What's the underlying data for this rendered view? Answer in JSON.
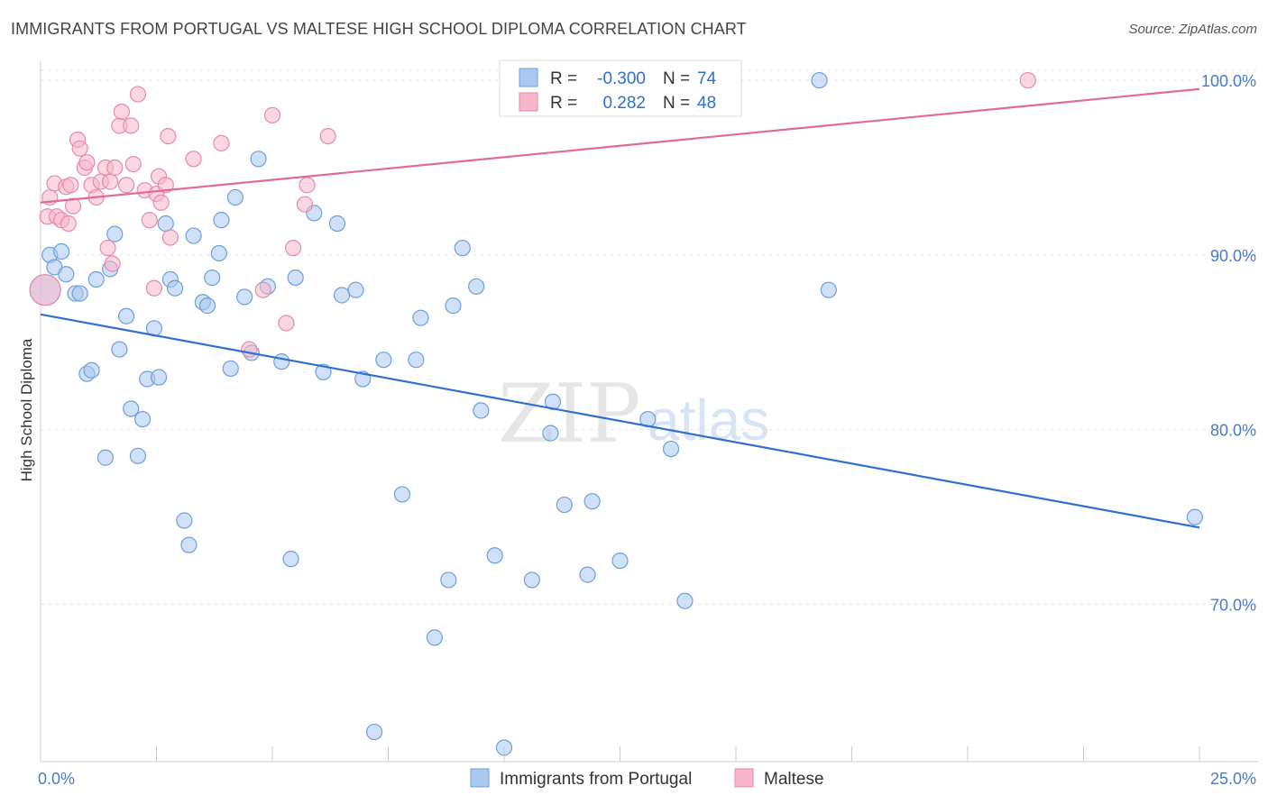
{
  "header": {
    "title": "IMMIGRANTS FROM PORTUGAL VS MALTESE HIGH SCHOOL DIPLOMA CORRELATION CHART",
    "source": "Source: ZipAtlas.com"
  },
  "watermark": {
    "zip": "ZIP",
    "atlas": "atlas"
  },
  "legend": {
    "rows": [
      {
        "r_label": "R =",
        "r_value": "-0.300",
        "n_label": "N =",
        "n_value": "74",
        "color": "#a9c8f0"
      },
      {
        "r_label": "R =",
        "r_value": "0.282",
        "n_label": "N =",
        "n_value": "48",
        "color": "#f7b6c9"
      }
    ]
  },
  "chart_data": {
    "type": "scatter",
    "title": "IMMIGRANTS FROM PORTUGAL VS MALTESE HIGH SCHOOL DIPLOMA CORRELATION CHART",
    "xlabel": "",
    "ylabel": "High School Diploma",
    "xlim": [
      0,
      25
    ],
    "ylim": [
      61,
      101.5
    ],
    "x_tick_labels": [
      "0.0%",
      "25.0%"
    ],
    "y_ticks": [
      70,
      80,
      90,
      100
    ],
    "y_tick_labels": [
      "70.0%",
      "80.0%",
      "90.0%",
      "100.0%"
    ],
    "grid": true,
    "legend_position": "top-center",
    "series": [
      {
        "name": "Immigrants from Portugal",
        "color": "#a9c8f0",
        "stroke": "#6e9fdc",
        "trend_color": "#2f6fcf",
        "trend": {
          "x": [
            0,
            25
          ],
          "y": [
            86.6,
            74.4
          ]
        },
        "points": [
          [
            0.1,
            88.0
          ],
          [
            0.2,
            90.0
          ],
          [
            0.3,
            89.3
          ],
          [
            0.45,
            90.2
          ],
          [
            0.55,
            88.9
          ],
          [
            0.75,
            87.8
          ],
          [
            0.85,
            87.8
          ],
          [
            1.0,
            83.2
          ],
          [
            1.1,
            83.4
          ],
          [
            1.2,
            88.6
          ],
          [
            1.4,
            78.4
          ],
          [
            1.5,
            89.2
          ],
          [
            1.6,
            91.2
          ],
          [
            1.7,
            84.6
          ],
          [
            1.85,
            86.5
          ],
          [
            1.95,
            81.2
          ],
          [
            2.1,
            78.5
          ],
          [
            2.2,
            80.6
          ],
          [
            2.3,
            82.9
          ],
          [
            2.45,
            85.8
          ],
          [
            2.55,
            83.0
          ],
          [
            2.7,
            91.8
          ],
          [
            2.8,
            88.6
          ],
          [
            2.9,
            88.1
          ],
          [
            3.1,
            74.8
          ],
          [
            3.2,
            73.4
          ],
          [
            3.3,
            91.1
          ],
          [
            3.5,
            87.3
          ],
          [
            3.6,
            87.1
          ],
          [
            3.7,
            88.7
          ],
          [
            3.85,
            90.1
          ],
          [
            3.9,
            92.0
          ],
          [
            4.1,
            83.5
          ],
          [
            4.2,
            93.3
          ],
          [
            4.4,
            87.6
          ],
          [
            4.55,
            84.4
          ],
          [
            4.7,
            95.5
          ],
          [
            4.9,
            88.2
          ],
          [
            5.2,
            83.9
          ],
          [
            5.4,
            72.6
          ],
          [
            5.5,
            88.7
          ],
          [
            5.9,
            92.4
          ],
          [
            6.1,
            83.3
          ],
          [
            6.4,
            91.8
          ],
          [
            6.5,
            87.7
          ],
          [
            6.8,
            88.0
          ],
          [
            6.95,
            82.9
          ],
          [
            7.2,
            62.7
          ],
          [
            7.4,
            84.0
          ],
          [
            7.8,
            76.3
          ],
          [
            8.1,
            84.0
          ],
          [
            8.2,
            86.4
          ],
          [
            8.5,
            68.1
          ],
          [
            8.8,
            71.4
          ],
          [
            8.9,
            87.1
          ],
          [
            9.1,
            90.4
          ],
          [
            9.4,
            88.2
          ],
          [
            9.5,
            81.1
          ],
          [
            9.8,
            72.8
          ],
          [
            10.0,
            61.8
          ],
          [
            10.6,
            71.4
          ],
          [
            11.0,
            79.8
          ],
          [
            11.05,
            81.6
          ],
          [
            11.3,
            75.7
          ],
          [
            11.8,
            71.7
          ],
          [
            11.9,
            75.9
          ],
          [
            12.5,
            72.5
          ],
          [
            13.1,
            80.6
          ],
          [
            13.6,
            78.9
          ],
          [
            13.9,
            70.2
          ],
          [
            14.1,
            100.0
          ],
          [
            16.8,
            100.0
          ],
          [
            17.0,
            88.0
          ],
          [
            24.9,
            75.0
          ]
        ]
      },
      {
        "name": "Maltese",
        "color": "#f7b6c9",
        "stroke": "#e88aa8",
        "trend_color": "#e06b96",
        "trend": {
          "x": [
            0,
            25
          ],
          "y": [
            93.0,
            99.5
          ]
        },
        "points": [
          [
            0.1,
            88.0
          ],
          [
            0.15,
            92.2
          ],
          [
            0.2,
            93.3
          ],
          [
            0.3,
            94.1
          ],
          [
            0.35,
            92.2
          ],
          [
            0.45,
            92.0
          ],
          [
            0.55,
            93.9
          ],
          [
            0.6,
            91.8
          ],
          [
            0.65,
            94.0
          ],
          [
            0.7,
            92.8
          ],
          [
            0.8,
            96.6
          ],
          [
            0.85,
            96.1
          ],
          [
            0.95,
            95.0
          ],
          [
            1.0,
            95.3
          ],
          [
            1.1,
            94.0
          ],
          [
            1.2,
            93.3
          ],
          [
            1.3,
            94.2
          ],
          [
            1.4,
            95.0
          ],
          [
            1.45,
            90.4
          ],
          [
            1.5,
            94.2
          ],
          [
            1.55,
            89.5
          ],
          [
            1.6,
            95.0
          ],
          [
            1.7,
            97.4
          ],
          [
            1.75,
            98.2
          ],
          [
            1.85,
            94.0
          ],
          [
            1.95,
            97.4
          ],
          [
            2.0,
            95.2
          ],
          [
            2.1,
            99.2
          ],
          [
            2.25,
            93.7
          ],
          [
            2.35,
            92.0
          ],
          [
            2.45,
            88.1
          ],
          [
            2.5,
            93.5
          ],
          [
            2.55,
            94.5
          ],
          [
            2.6,
            93.0
          ],
          [
            2.7,
            94.0
          ],
          [
            2.75,
            96.8
          ],
          [
            2.8,
            91.0
          ],
          [
            3.3,
            95.5
          ],
          [
            3.9,
            96.4
          ],
          [
            4.5,
            84.6
          ],
          [
            4.8,
            88.0
          ],
          [
            5.0,
            98.0
          ],
          [
            5.3,
            86.1
          ],
          [
            5.45,
            90.4
          ],
          [
            5.7,
            92.9
          ],
          [
            5.75,
            94.0
          ],
          [
            6.2,
            96.8
          ],
          [
            21.3,
            100.0
          ]
        ]
      }
    ]
  },
  "bottom_legend": {
    "items": [
      {
        "label": "Immigrants from Portugal",
        "color": "#a9c8f0"
      },
      {
        "label": "Maltese",
        "color": "#f7b6c9"
      }
    ]
  }
}
